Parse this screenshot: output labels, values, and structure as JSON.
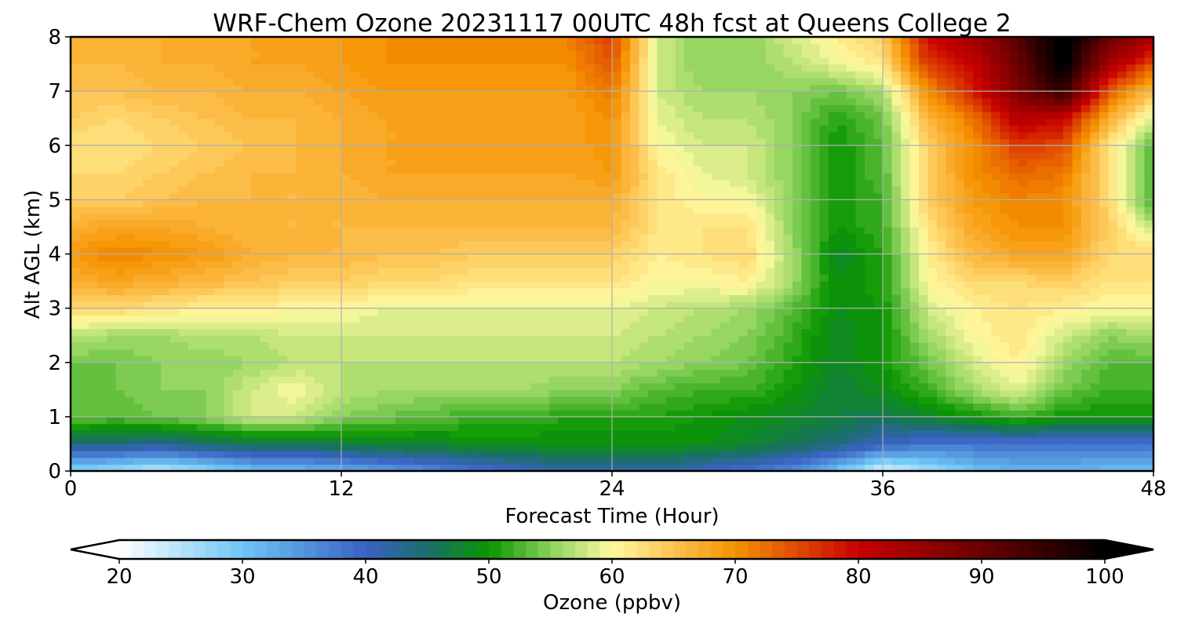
{
  "chart_data": {
    "type": "heatmap",
    "title": "WRF-Chem Ozone  20231117 00UTC 48h fcst at Queens College 2",
    "xlabel": "Forecast Time (Hour)",
    "ylabel": "Alt AGL (km)",
    "xlim": [
      0,
      48
    ],
    "ylim": [
      0,
      8
    ],
    "xticks": [
      0,
      12,
      24,
      36,
      48
    ],
    "yticks": [
      0,
      1,
      2,
      3,
      4,
      5,
      6,
      7,
      8
    ],
    "grid": true,
    "colorbar": {
      "label": "Ozone  (ppbv)",
      "min": 20,
      "max": 100,
      "step": 1,
      "ticks": [
        20,
        30,
        40,
        50,
        60,
        70,
        80,
        90,
        100
      ],
      "extend": "both",
      "stops": [
        {
          "v": 20,
          "c": "#ffffff"
        },
        {
          "v": 30,
          "c": "#6ec6f5"
        },
        {
          "v": 40,
          "c": "#3a62c4"
        },
        {
          "v": 45,
          "c": "#1a6e6a"
        },
        {
          "v": 50,
          "c": "#0a9600"
        },
        {
          "v": 55,
          "c": "#8ad25a"
        },
        {
          "v": 60,
          "c": "#fffaa0"
        },
        {
          "v": 65,
          "c": "#fdc250"
        },
        {
          "v": 70,
          "c": "#f59200"
        },
        {
          "v": 75,
          "c": "#e04a00"
        },
        {
          "v": 80,
          "c": "#c80000"
        },
        {
          "v": 90,
          "c": "#6a0000"
        },
        {
          "v": 100,
          "c": "#000000"
        }
      ]
    },
    "x": [
      0,
      2,
      4,
      6,
      8,
      10,
      12,
      14,
      16,
      18,
      20,
      22,
      24,
      26,
      28,
      30,
      32,
      34,
      36,
      38,
      40,
      42,
      44,
      46,
      48
    ],
    "y": [
      0,
      0.5,
      1,
      1.5,
      2,
      2.5,
      3,
      3.5,
      4,
      4.5,
      5,
      5.5,
      6,
      6.5,
      7,
      7.5,
      8
    ],
    "z": [
      [
        28,
        26,
        24,
        27,
        30,
        31,
        32,
        34,
        36,
        38,
        40,
        42,
        42,
        42,
        40,
        38,
        36,
        30,
        22,
        26,
        30,
        32,
        32,
        31,
        30
      ],
      [
        44,
        44,
        43,
        45,
        46,
        46,
        47,
        48,
        48,
        49,
        49,
        49,
        49,
        49,
        49,
        48,
        46,
        44,
        40,
        38,
        38,
        38,
        38,
        38,
        38
      ],
      [
        54,
        53,
        54,
        55,
        58,
        58,
        55,
        54,
        53,
        52,
        52,
        51,
        51,
        51,
        50,
        49,
        48,
        47,
        46,
        48,
        50,
        52,
        50,
        50,
        50
      ],
      [
        53,
        54,
        55,
        55,
        58,
        60,
        57,
        56,
        56,
        56,
        56,
        55,
        55,
        53,
        52,
        52,
        50,
        47,
        49,
        52,
        56,
        59,
        54,
        52,
        52
      ],
      [
        54,
        54,
        55,
        55,
        56,
        57,
        57,
        57,
        57,
        57,
        57,
        57,
        57,
        56,
        55,
        54,
        51,
        48,
        50,
        54,
        58,
        61,
        56,
        53,
        53
      ],
      [
        57,
        56,
        56,
        57,
        57,
        58,
        58,
        58,
        58,
        58,
        58,
        58,
        58,
        57,
        56,
        55,
        52,
        48,
        50,
        56,
        60,
        62,
        58,
        55,
        56
      ],
      [
        63,
        63,
        62,
        61,
        61,
        60,
        60,
        59,
        59,
        59,
        59,
        59,
        59,
        58,
        57,
        56,
        53,
        49,
        50,
        58,
        61,
        62,
        61,
        60,
        60
      ],
      [
        67,
        68,
        67,
        66,
        65,
        64,
        64,
        63,
        63,
        62,
        62,
        62,
        62,
        60,
        60,
        61,
        56,
        49,
        51,
        60,
        63,
        63,
        64,
        62,
        62
      ],
      [
        69,
        71,
        70,
        69,
        67,
        66,
        66,
        65,
        65,
        64,
        64,
        64,
        64,
        61,
        62,
        63,
        56,
        48,
        51,
        61,
        66,
        68,
        68,
        63,
        63
      ],
      [
        67,
        68,
        68,
        67,
        66,
        66,
        66,
        66,
        66,
        66,
        66,
        66,
        66,
        62,
        62,
        62,
        55,
        50,
        52,
        62,
        68,
        70,
        70,
        64,
        57
      ],
      [
        64,
        64,
        65,
        66,
        66,
        66,
        66,
        67,
        67,
        67,
        67,
        67,
        67,
        62,
        60,
        60,
        55,
        50,
        52,
        64,
        69,
        71,
        70,
        63,
        52
      ],
      [
        63,
        63,
        64,
        65,
        66,
        66,
        67,
        68,
        68,
        68,
        68,
        68,
        69,
        62,
        59,
        58,
        55,
        50,
        53,
        64,
        70,
        73,
        72,
        62,
        52
      ],
      [
        62,
        62,
        63,
        64,
        65,
        66,
        67,
        68,
        68,
        68,
        68,
        68,
        70,
        60,
        58,
        58,
        55,
        50,
        53,
        64,
        70,
        76,
        75,
        62,
        53
      ],
      [
        64,
        63,
        64,
        65,
        66,
        66,
        67,
        68,
        68,
        68,
        68,
        68,
        70,
        59,
        57,
        57,
        55,
        51,
        54,
        66,
        72,
        82,
        80,
        67,
        58
      ],
      [
        65,
        65,
        66,
        66,
        67,
        67,
        68,
        69,
        69,
        69,
        69,
        69,
        72,
        58,
        56,
        56,
        55,
        54,
        56,
        70,
        78,
        88,
        96,
        74,
        65
      ],
      [
        66,
        66,
        67,
        67,
        68,
        68,
        69,
        70,
        70,
        70,
        70,
        70,
        74,
        58,
        55,
        55,
        57,
        59,
        62,
        76,
        80,
        90,
        101,
        84,
        74
      ],
      [
        66,
        66,
        67,
        67,
        68,
        68,
        69,
        70,
        70,
        70,
        70,
        71,
        76,
        58,
        55,
        55,
        58,
        61,
        64,
        80,
        84,
        92,
        102,
        90,
        84
      ]
    ]
  },
  "colors": {
    "grid": "#b0b0b0",
    "frame": "#000000"
  }
}
